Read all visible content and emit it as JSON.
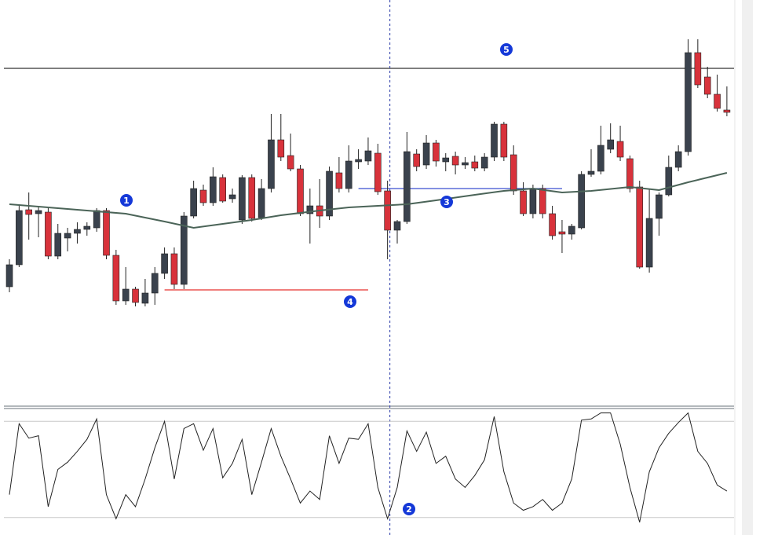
{
  "chart_data": [
    {
      "type": "candlestick",
      "ylim": [
        0,
        515
      ],
      "up_color": "#3a424d",
      "down_color": "#d8323b",
      "open": [
        150,
        178,
        248,
        243,
        245,
        189,
        212,
        218,
        223,
        225,
        247,
        190,
        132,
        147,
        129,
        142,
        167,
        192,
        153,
        240,
        273,
        257,
        289,
        262,
        235,
        289,
        238,
        275,
        337,
        317,
        300,
        243,
        253,
        240,
        295,
        275,
        309,
        310,
        320,
        272,
        222,
        233,
        319,
        305,
        333,
        309,
        316,
        305,
        309,
        301,
        315,
        357,
        318,
        272,
        243,
        275,
        243,
        220,
        217,
        225,
        293,
        297,
        325,
        335,
        313,
        277,
        175,
        237,
        267,
        302,
        322,
        448,
        417,
        395,
        375
      ],
      "high": [
        185,
        253,
        270,
        253,
        250,
        230,
        225,
        232,
        232,
        250,
        250,
        197,
        175,
        150,
        160,
        175,
        200,
        200,
        245,
        285,
        280,
        302,
        293,
        275,
        292,
        293,
        287,
        370,
        370,
        345,
        305,
        275,
        287,
        303,
        315,
        330,
        325,
        340,
        332,
        285,
        235,
        347,
        325,
        343,
        337,
        320,
        322,
        315,
        317,
        320,
        360,
        360,
        330,
        283,
        280,
        280,
        253,
        235,
        230,
        297,
        325,
        355,
        358,
        355,
        317,
        285,
        275,
        270,
        317,
        330,
        465,
        465,
        430,
        420,
        405
      ],
      "low": [
        143,
        175,
        210,
        213,
        185,
        185,
        195,
        205,
        215,
        220,
        185,
        127,
        127,
        125,
        125,
        127,
        160,
        147,
        147,
        237,
        253,
        253,
        257,
        257,
        230,
        233,
        235,
        270,
        310,
        297,
        240,
        205,
        225,
        235,
        270,
        270,
        300,
        305,
        267,
        185,
        205,
        230,
        297,
        300,
        303,
        297,
        293,
        300,
        297,
        297,
        310,
        310,
        267,
        240,
        237,
        237,
        210,
        193,
        210,
        223,
        290,
        293,
        320,
        310,
        270,
        173,
        168,
        215,
        265,
        297,
        317,
        403,
        390,
        373,
        367
      ],
      "close": [
        178,
        247,
        242,
        247,
        189,
        218,
        218,
        223,
        227,
        247,
        190,
        132,
        147,
        130,
        142,
        167,
        192,
        153,
        240,
        275,
        257,
        290,
        259,
        267,
        289,
        237,
        275,
        337,
        315,
        300,
        243,
        253,
        240,
        297,
        275,
        310,
        312,
        323,
        271,
        222,
        233,
        322,
        303,
        333,
        310,
        314,
        305,
        308,
        301,
        315,
        357,
        315,
        272,
        243,
        275,
        243,
        215,
        217,
        227,
        293,
        297,
        330,
        337,
        315,
        275,
        175,
        237,
        267,
        302,
        322,
        448,
        407,
        395,
        377,
        372
      ],
      "ma": {
        "color": "#4b6458",
        "x": [
          0,
          4,
          8,
          12,
          16,
          19,
          22,
          25,
          28,
          32,
          35,
          38,
          41,
          44,
          48,
          51,
          54,
          57,
          60,
          64,
          67,
          70,
          74
        ],
        "values": [
          255,
          251,
          247,
          243,
          233,
          225,
          230,
          235,
          241,
          247,
          251,
          253,
          255,
          260,
          267,
          272,
          275,
          270,
          272,
          277,
          273,
          283,
          295
        ]
      },
      "hlines": [
        {
          "value": 428,
          "color": "#333333"
        },
        {
          "value": 146,
          "from": 16,
          "to": 37,
          "color": "#e8302f"
        },
        {
          "value": 275,
          "from": 36,
          "to": 57,
          "color": "#3a4fd0"
        }
      ],
      "cursor": 39
    },
    {
      "type": "line",
      "ylim": [
        0,
        100
      ],
      "levels": [
        10,
        90
      ],
      "color": "#222222",
      "values": [
        29,
        88,
        76,
        78,
        19,
        50,
        56,
        65,
        75,
        92,
        29,
        9,
        29,
        19,
        42,
        68,
        90,
        42,
        84,
        88,
        66,
        84,
        43,
        55,
        75,
        29,
        56,
        84,
        61,
        42,
        22,
        32,
        25,
        78,
        55,
        76,
        75,
        88,
        35,
        9,
        35,
        82,
        65,
        81,
        55,
        61,
        42,
        35,
        45,
        58,
        94,
        48,
        22,
        16,
        19,
        25,
        16,
        22,
        42,
        91,
        92,
        97,
        97,
        71,
        35,
        6,
        48,
        68,
        80,
        89,
        97,
        65,
        55,
        37,
        32
      ]
    }
  ],
  "annotations": [
    "1",
    "2",
    "3",
    "4",
    "5"
  ]
}
